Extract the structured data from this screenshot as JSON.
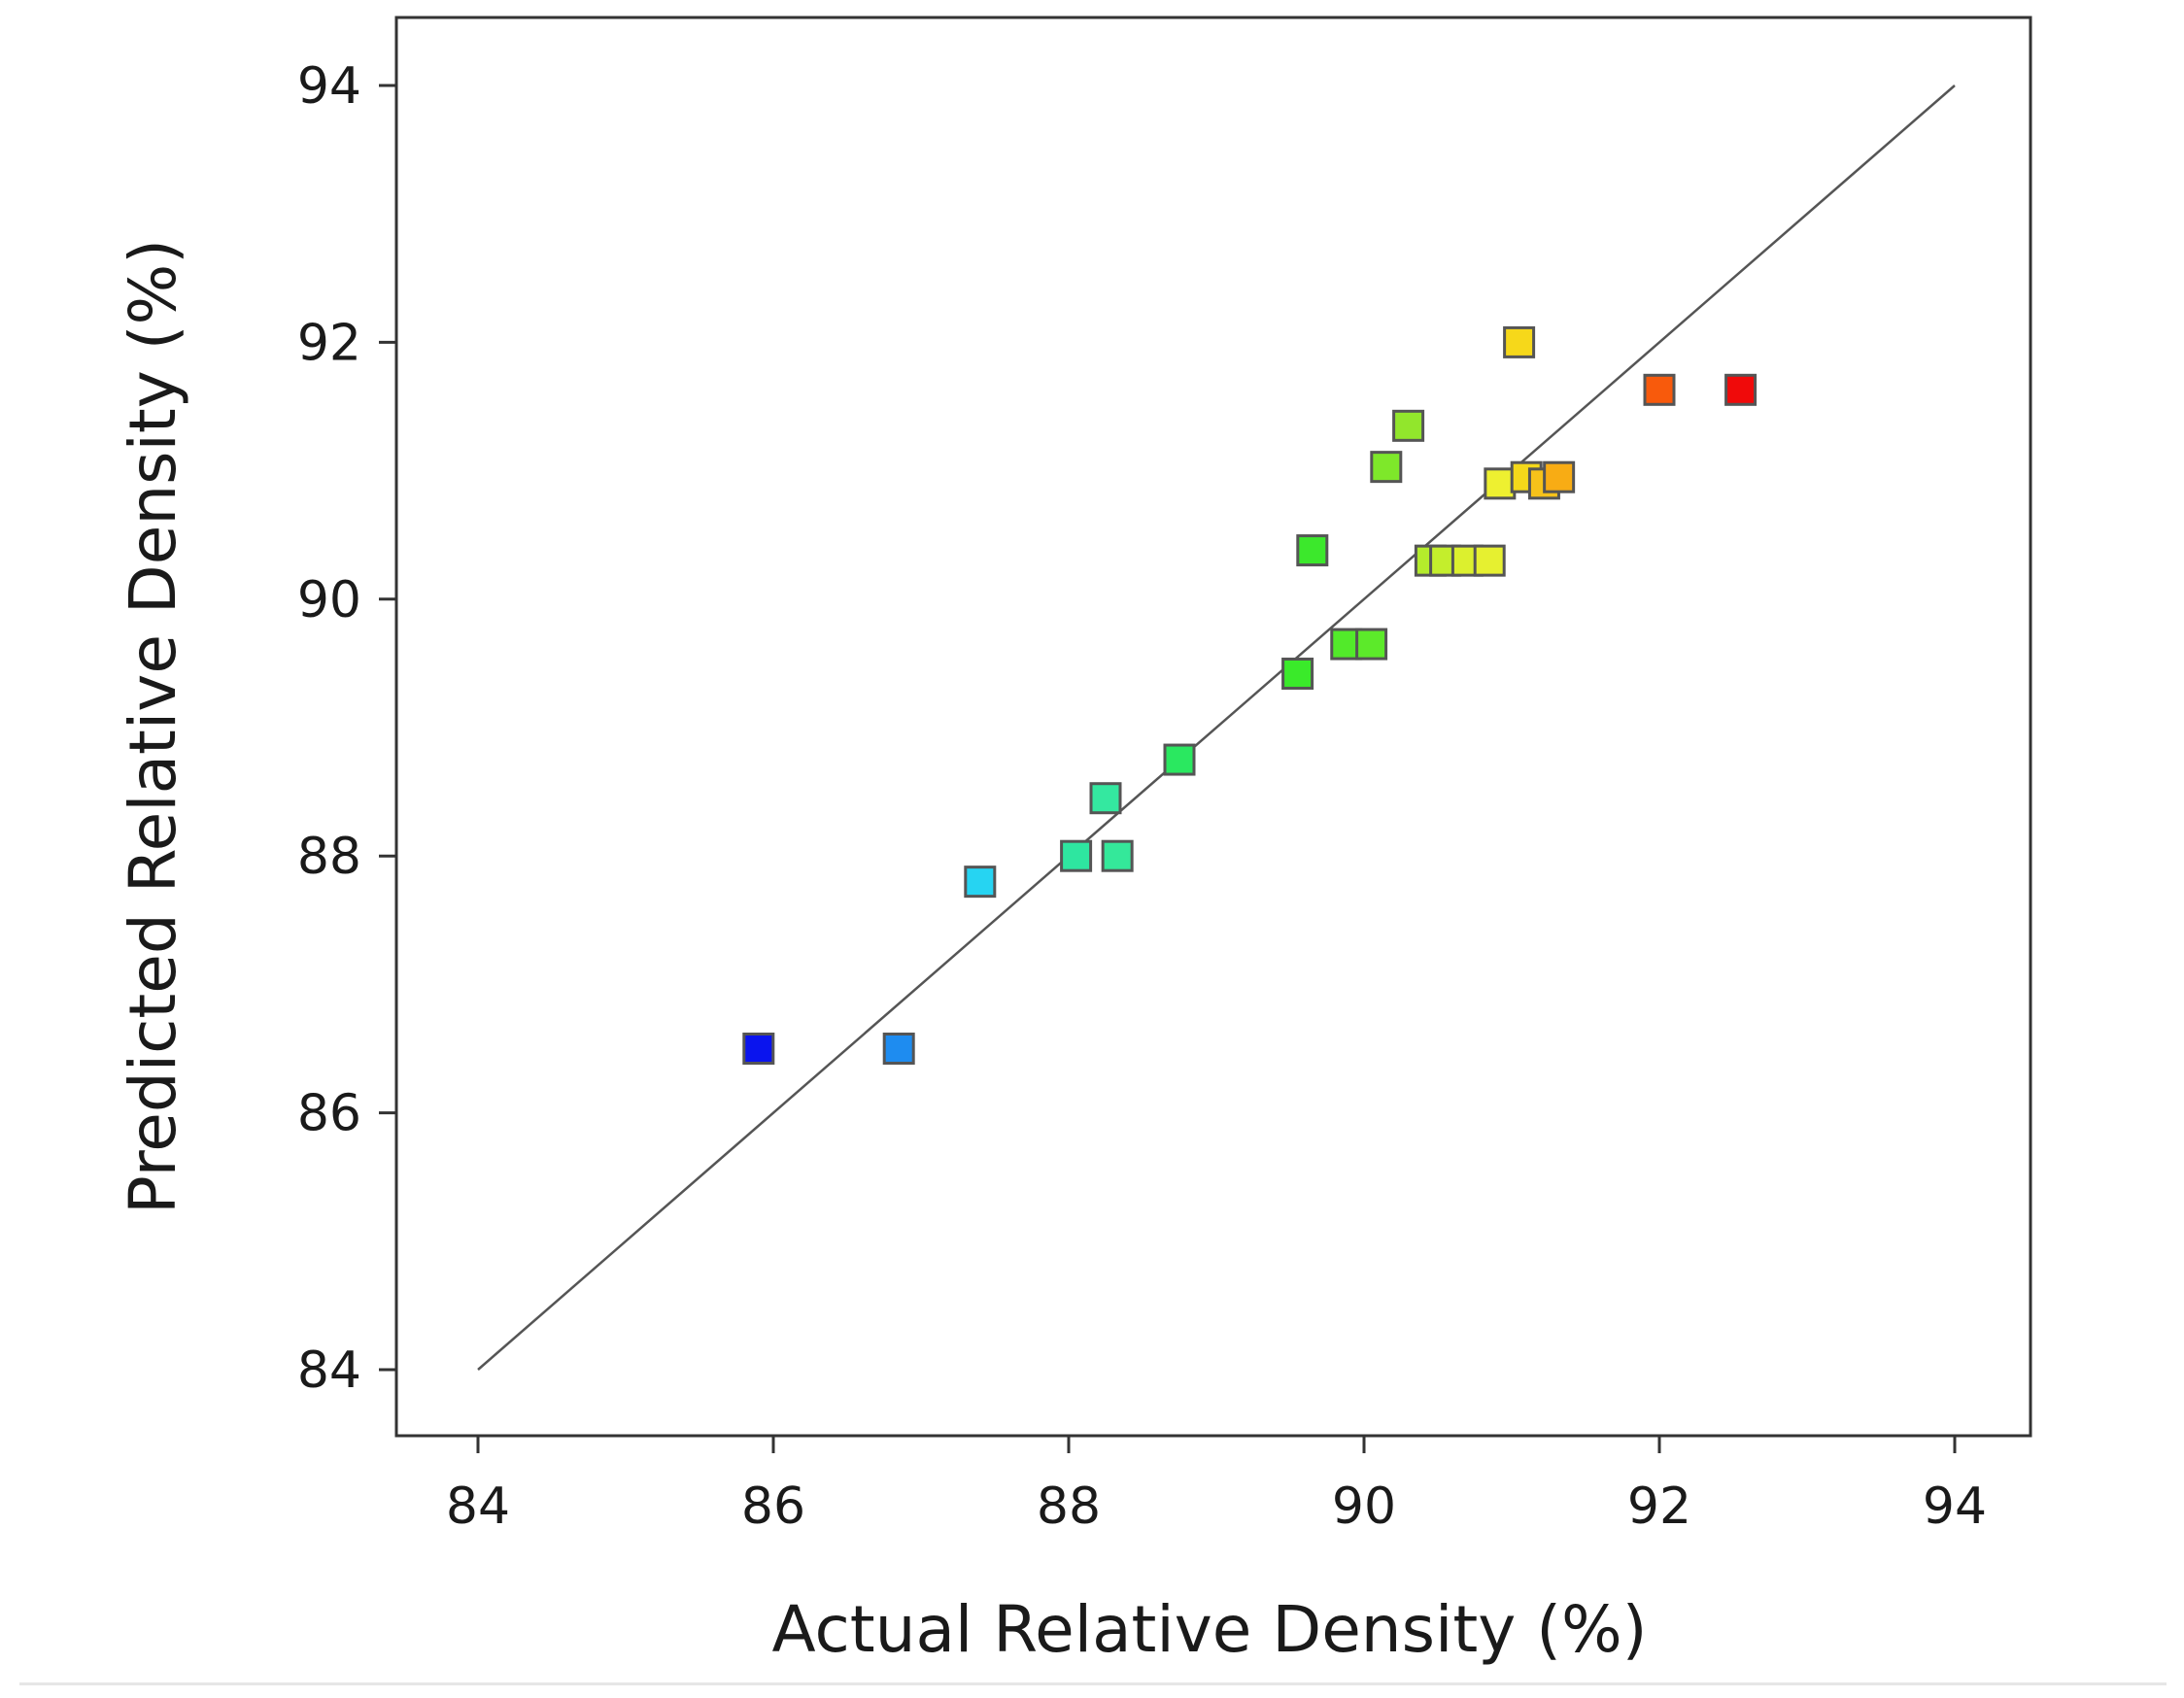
{
  "chart_data": {
    "type": "scatter",
    "title": "",
    "xlabel": "Actual Relative Density (%)",
    "ylabel": "Predicted Relative Density (%)",
    "xlim": [
      84,
      94
    ],
    "ylim": [
      84,
      94
    ],
    "xticks": [
      "84",
      "86",
      "88",
      "90",
      "92",
      "94"
    ],
    "yticks": [
      "84",
      "86",
      "88",
      "90",
      "92",
      "94"
    ],
    "reference_line": {
      "from": [
        84,
        84
      ],
      "to": [
        94,
        94
      ],
      "color": "#555555"
    },
    "marker": "square",
    "grid": false,
    "points": [
      {
        "x": 85.9,
        "y": 86.5,
        "color": "#0a14ee"
      },
      {
        "x": 86.85,
        "y": 86.5,
        "color": "#1e8cf0"
      },
      {
        "x": 87.4,
        "y": 87.8,
        "color": "#26d4f2"
      },
      {
        "x": 88.05,
        "y": 88.0,
        "color": "#2ee6a0"
      },
      {
        "x": 88.25,
        "y": 88.45,
        "color": "#34e8a0"
      },
      {
        "x": 88.33,
        "y": 88.0,
        "color": "#34e89a"
      },
      {
        "x": 88.75,
        "y": 88.75,
        "color": "#2ae860"
      },
      {
        "x": 89.55,
        "y": 89.42,
        "color": "#3aea2a"
      },
      {
        "x": 89.65,
        "y": 90.38,
        "color": "#3ce82c"
      },
      {
        "x": 89.88,
        "y": 89.65,
        "color": "#52ea2a"
      },
      {
        "x": 90.05,
        "y": 89.65,
        "color": "#5cea2a"
      },
      {
        "x": 90.15,
        "y": 91.03,
        "color": "#7ee82a"
      },
      {
        "x": 90.3,
        "y": 91.35,
        "color": "#92e62c"
      },
      {
        "x": 90.45,
        "y": 90.3,
        "color": "#b4ec2c"
      },
      {
        "x": 90.55,
        "y": 90.3,
        "color": "#c4ee2c"
      },
      {
        "x": 90.7,
        "y": 90.3,
        "color": "#dcf02e"
      },
      {
        "x": 90.85,
        "y": 90.3,
        "color": "#e6f030"
      },
      {
        "x": 90.92,
        "y": 90.9,
        "color": "#eef030"
      },
      {
        "x": 91.05,
        "y": 92.0,
        "color": "#f6d81a"
      },
      {
        "x": 91.1,
        "y": 90.95,
        "color": "#f4d81a"
      },
      {
        "x": 91.22,
        "y": 90.9,
        "color": "#f6c21a"
      },
      {
        "x": 91.32,
        "y": 90.95,
        "color": "#f8ac14"
      },
      {
        "x": 92.0,
        "y": 91.63,
        "color": "#f85a0c"
      },
      {
        "x": 92.55,
        "y": 91.63,
        "color": "#f00a0a"
      }
    ]
  }
}
